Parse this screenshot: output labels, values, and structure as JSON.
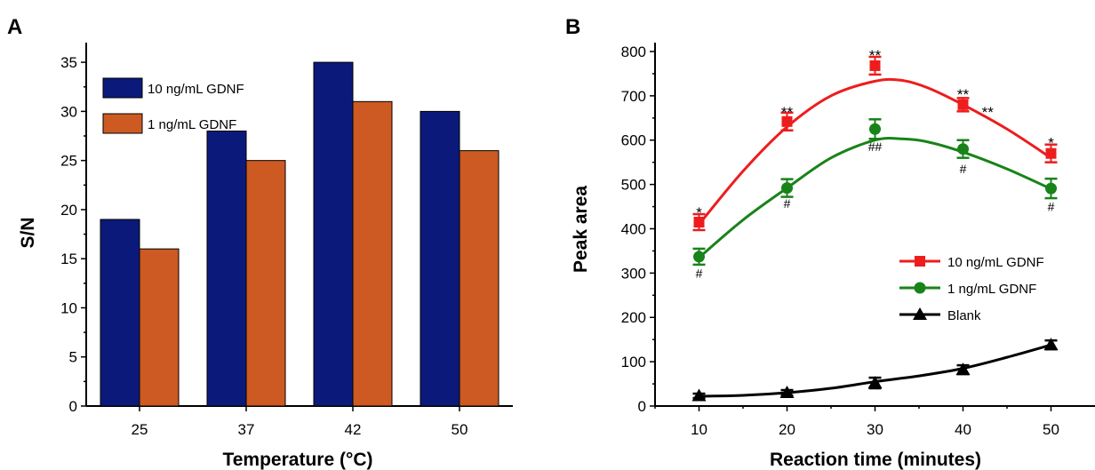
{
  "panels": [
    {
      "label": "A"
    },
    {
      "label": "B"
    }
  ],
  "chart_data": [
    {
      "type": "bar",
      "panel": "A",
      "categories": [
        "25",
        "37",
        "42",
        "50"
      ],
      "series": [
        {
          "name": "10 ng/mL GDNF",
          "values": [
            19,
            28,
            35,
            30
          ],
          "color": "#0b1a7a"
        },
        {
          "name": "1 ng/mL GDNF",
          "values": [
            16,
            25,
            31,
            26
          ],
          "color": "#cc5a22"
        }
      ],
      "xlabel": "Temperature (°C)",
      "ylabel": "S/N",
      "ylim": [
        0,
        37
      ],
      "yticks": [
        "0",
        "5",
        "10",
        "15",
        "20",
        "25",
        "30",
        "35"
      ],
      "legend_position": "top-left"
    },
    {
      "type": "line",
      "panel": "B",
      "x": [
        10,
        20,
        30,
        40,
        50
      ],
      "series": [
        {
          "name": "10 ng/mL GDNF",
          "values": [
            415,
            642,
            768,
            680,
            570
          ],
          "errors": [
            18,
            20,
            20,
            15,
            20
          ],
          "color": "#ee1c1c",
          "marker": "square",
          "fit": [
            [
              10,
              410
            ],
            [
              15,
              530
            ],
            [
              20,
              630
            ],
            [
              25,
              700
            ],
            [
              30,
              733
            ],
            [
              33,
              735
            ],
            [
              36,
              718
            ],
            [
              40,
              680
            ],
            [
              45,
              625
            ],
            [
              50,
              560
            ]
          ]
        },
        {
          "name": "1 ng/mL GDNF",
          "values": [
            337,
            492,
            625,
            580,
            491
          ],
          "errors": [
            18,
            20,
            22,
            20,
            22
          ],
          "color": "#188318",
          "marker": "circle",
          "fit": [
            [
              10,
              335
            ],
            [
              15,
              420
            ],
            [
              20,
              492
            ],
            [
              25,
              560
            ],
            [
              30,
              600
            ],
            [
              33,
              603
            ],
            [
              36,
              596
            ],
            [
              40,
              573
            ],
            [
              45,
              535
            ],
            [
              50,
              490
            ]
          ]
        },
        {
          "name": "Blank",
          "values": [
            23,
            30,
            52,
            82,
            138
          ],
          "errors": [
            5,
            6,
            12,
            10,
            10
          ],
          "color": "#000000",
          "marker": "triangle",
          "fit": [
            [
              10,
              22
            ],
            [
              15,
              24
            ],
            [
              20,
              30
            ],
            [
              25,
              40
            ],
            [
              30,
              55
            ],
            [
              35,
              68
            ],
            [
              40,
              85
            ],
            [
              45,
              110
            ],
            [
              50,
              138
            ]
          ]
        }
      ],
      "annotations": [
        {
          "text": "*",
          "x": 10,
          "y": 445,
          "size": "large"
        },
        {
          "text": "**",
          "x": 20,
          "y": 672,
          "size": "large"
        },
        {
          "text": "**",
          "x": 30,
          "y": 800,
          "size": "large"
        },
        {
          "text": "**",
          "x": 40,
          "y": 712,
          "size": "large"
        },
        {
          "text": "**",
          "x": 42.8,
          "y": 672,
          "size": "large"
        },
        {
          "text": "*",
          "x": 50,
          "y": 602,
          "size": "large"
        },
        {
          "text": "#",
          "x": 10,
          "y": 290,
          "size": "small"
        },
        {
          "text": "#",
          "x": 20,
          "y": 447,
          "size": "small"
        },
        {
          "text": "##",
          "x": 30,
          "y": 575,
          "size": "small"
        },
        {
          "text": "#",
          "x": 40,
          "y": 525,
          "size": "small"
        },
        {
          "text": "#",
          "x": 50,
          "y": 440,
          "size": "small"
        }
      ],
      "xlabel": "Reaction time (minutes)",
      "ylabel": "Peak area",
      "xlim": [
        5,
        55
      ],
      "ylim": [
        0,
        820
      ],
      "xticks": [
        "10",
        "20",
        "30",
        "40",
        "50"
      ],
      "yticks": [
        "0",
        "100",
        "200",
        "300",
        "400",
        "500",
        "600",
        "700",
        "800"
      ],
      "legend_position": "right"
    }
  ]
}
